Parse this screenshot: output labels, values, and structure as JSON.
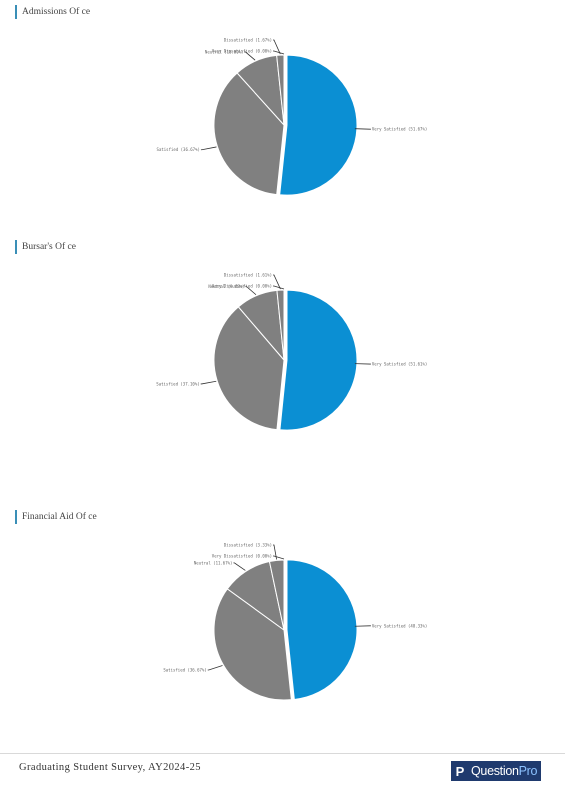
{
  "charts": [
    {
      "title": "Admissions Of ce",
      "slices": [
        {
          "label": "Very Satisfied",
          "pct": "51.67%",
          "value": 51.67,
          "color": "#0b8fd3"
        },
        {
          "label": "Satisfied",
          "pct": "36.67%",
          "value": 36.67,
          "color": "#808080"
        },
        {
          "label": "Neutral",
          "pct": "10.00%",
          "value": 10.0,
          "color": "#808080"
        },
        {
          "label": "Dissatisfied",
          "pct": "1.67%",
          "value": 1.67,
          "color": "#808080"
        },
        {
          "label": "Very Dissatisfied",
          "pct": "0.00%",
          "value": 0.0,
          "color": "#808080"
        }
      ]
    },
    {
      "title": "Bursar's Of ce",
      "slices": [
        {
          "label": "Very Satisfied",
          "pct": "51.61%",
          "value": 51.61,
          "color": "#0b8fd3"
        },
        {
          "label": "Satisfied",
          "pct": "37.10%",
          "value": 37.1,
          "color": "#808080"
        },
        {
          "label": "Neutral",
          "pct": "9.68%",
          "value": 9.68,
          "color": "#808080"
        },
        {
          "label": "Dissatisfied",
          "pct": "1.61%",
          "value": 1.61,
          "color": "#808080"
        },
        {
          "label": "Very Dissatisfied",
          "pct": "0.00%",
          "value": 0.0,
          "color": "#808080"
        }
      ]
    },
    {
      "title": "Financial Aid Of ce",
      "slices": [
        {
          "label": "Very Satisfied",
          "pct": "48.33%",
          "value": 48.33,
          "color": "#0b8fd3"
        },
        {
          "label": "Satisfied",
          "pct": "36.67%",
          "value": 36.67,
          "color": "#808080"
        },
        {
          "label": "Neutral",
          "pct": "11.67%",
          "value": 11.67,
          "color": "#808080"
        },
        {
          "label": "Dissatisfied",
          "pct": "3.33%",
          "value": 3.33,
          "color": "#808080"
        },
        {
          "label": "Very Dissatisfied",
          "pct": "0.00%",
          "value": 0.0,
          "color": "#808080"
        }
      ]
    }
  ],
  "chart_data": [
    {
      "type": "pie",
      "title": "Admissions Of ce",
      "categories": [
        "Very Satisfied",
        "Satisfied",
        "Neutral",
        "Dissatisfied",
        "Very Dissatisfied"
      ],
      "values": [
        51.67,
        36.67,
        10.0,
        1.67,
        0.0
      ],
      "legend": "none"
    },
    {
      "type": "pie",
      "title": "Bursar's Of ce",
      "categories": [
        "Very Satisfied",
        "Satisfied",
        "Neutral",
        "Dissatisfied",
        "Very Dissatisfied"
      ],
      "values": [
        51.61,
        37.1,
        9.68,
        1.61,
        0.0
      ],
      "legend": "none"
    },
    {
      "type": "pie",
      "title": "Financial Aid Of ce",
      "categories": [
        "Very Satisfied",
        "Satisfied",
        "Neutral",
        "Dissatisfied",
        "Very Dissatisfied"
      ],
      "values": [
        48.33,
        36.67,
        11.67,
        3.33,
        0.0
      ],
      "legend": "none"
    }
  ],
  "footer": {
    "survey_title": "Graduating Student Survey, AY2024-25",
    "logo_mark": "P",
    "logo_question": "Question",
    "logo_pro": "Pro",
    "brand_color": "#1f3a6e"
  }
}
